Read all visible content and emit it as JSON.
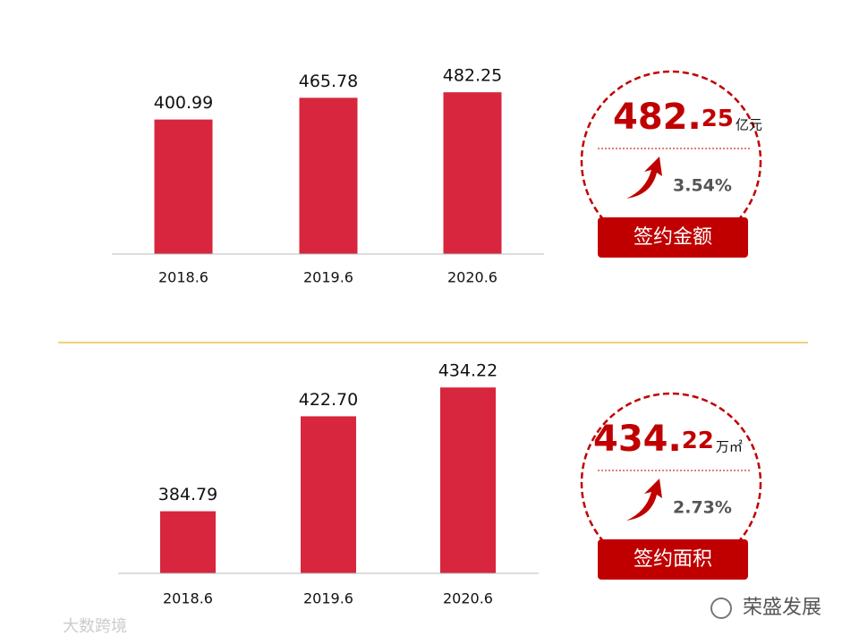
{
  "chart_data": [
    {
      "type": "bar",
      "categories": [
        "2018.6",
        "2019.6",
        "2020.6"
      ],
      "values": [
        400.99,
        465.78,
        482.25
      ],
      "value_labels": [
        "400.99",
        "465.78",
        "482.25"
      ],
      "color": "#d7263d",
      "ylim": [
        0,
        600
      ]
    },
    {
      "type": "bar",
      "categories": [
        "2018.6",
        "2019.6",
        "2020.6"
      ],
      "values": [
        384.79,
        422.7,
        434.22
      ],
      "value_labels": [
        "384.79",
        "422.70",
        "434.22"
      ],
      "color": "#d7263d",
      "ylim": [
        360,
        440
      ]
    }
  ],
  "cards": [
    {
      "value": "482.25",
      "unit": "亿元",
      "growth": "3.54%",
      "label": "签约金额"
    },
    {
      "value": "434.22",
      "unit": "万㎡",
      "growth": "2.73%",
      "label": "签约面积"
    }
  ],
  "watermarks": {
    "left": "大数跨境",
    "right": "荣盛发展"
  }
}
